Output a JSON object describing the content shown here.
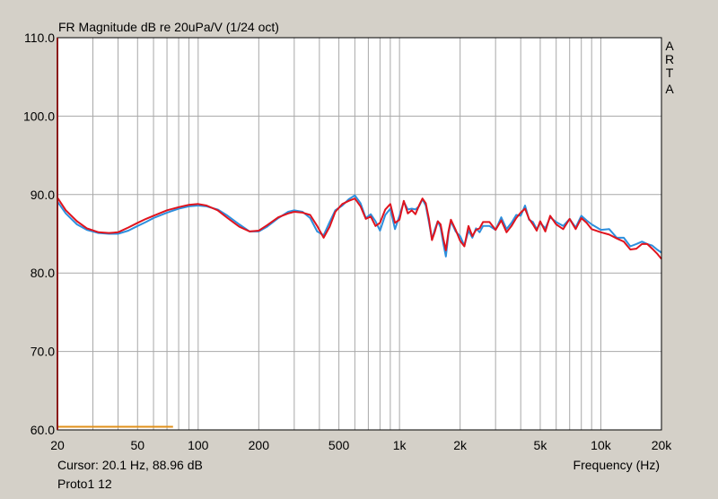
{
  "app_mark": [
    "A",
    "R",
    "T",
    "A"
  ],
  "footer": {
    "cursor": "Cursor: 20.1 Hz, 88.96 dB",
    "measurement_name": "Proto1 12"
  },
  "colors": {
    "background": "#d4d0c8",
    "plot_area": "#ffffff",
    "grid": "#a8a8a8",
    "left_axis": "#8b1a1a",
    "series_blue": "#2d8fdd",
    "series_red": "#e0141e",
    "marker_orange": "#e0901a"
  },
  "chart_data": {
    "type": "line",
    "title": "FR Magnitude dB re 20uPa/V (1/24 oct)",
    "xlabel": "Frequency (Hz)",
    "ylabel": "",
    "x_scale": "log",
    "xlim": [
      20,
      20000
    ],
    "ylim": [
      60,
      110
    ],
    "grid": true,
    "x_ticks": [
      20,
      50,
      100,
      200,
      500,
      1000,
      2000,
      5000,
      10000,
      20000
    ],
    "x_tick_labels": [
      "20",
      "50",
      "100",
      "200",
      "500",
      "1k",
      "2k",
      "5k",
      "10k",
      "20k"
    ],
    "y_ticks": [
      60,
      70,
      80,
      90,
      100,
      110
    ],
    "y_tick_labels": [
      "60.0",
      "70.0",
      "80.0",
      "90.0",
      "100.0",
      "110.0"
    ],
    "series": [
      {
        "color": "#2d8fdd",
        "points": [
          [
            20,
            89.1
          ],
          [
            22,
            87.6
          ],
          [
            25,
            86.2
          ],
          [
            28,
            85.5
          ],
          [
            32,
            85.1
          ],
          [
            36,
            85.0
          ],
          [
            40,
            85.0
          ],
          [
            45,
            85.4
          ],
          [
            50,
            86.0
          ],
          [
            55,
            86.5
          ],
          [
            60,
            87.0
          ],
          [
            70,
            87.7
          ],
          [
            80,
            88.2
          ],
          [
            90,
            88.5
          ],
          [
            100,
            88.6
          ],
          [
            110,
            88.5
          ],
          [
            125,
            88.1
          ],
          [
            140,
            87.3
          ],
          [
            160,
            86.2
          ],
          [
            180,
            85.3
          ],
          [
            200,
            85.3
          ],
          [
            220,
            85.9
          ],
          [
            250,
            87.0
          ],
          [
            280,
            87.8
          ],
          [
            300,
            88.0
          ],
          [
            330,
            87.8
          ],
          [
            360,
            87.0
          ],
          [
            390,
            85.3
          ],
          [
            420,
            84.8
          ],
          [
            450,
            86.5
          ],
          [
            480,
            88.0
          ],
          [
            520,
            88.6
          ],
          [
            560,
            89.4
          ],
          [
            600,
            89.9
          ],
          [
            640,
            88.9
          ],
          [
            680,
            87.0
          ],
          [
            720,
            87.5
          ],
          [
            760,
            86.6
          ],
          [
            800,
            85.4
          ],
          [
            850,
            87.4
          ],
          [
            900,
            88.2
          ],
          [
            950,
            85.6
          ],
          [
            1000,
            87.3
          ],
          [
            1050,
            89.1
          ],
          [
            1100,
            88.1
          ],
          [
            1150,
            88.2
          ],
          [
            1200,
            88.1
          ],
          [
            1250,
            88.5
          ],
          [
            1300,
            89.4
          ],
          [
            1350,
            88.6
          ],
          [
            1400,
            86.5
          ],
          [
            1450,
            84.3
          ],
          [
            1500,
            85.6
          ],
          [
            1550,
            86.6
          ],
          [
            1600,
            85.8
          ],
          [
            1650,
            83.8
          ],
          [
            1700,
            82.1
          ],
          [
            1750,
            85.0
          ],
          [
            1800,
            86.6
          ],
          [
            1900,
            85.3
          ],
          [
            2000,
            84.7
          ],
          [
            2100,
            83.5
          ],
          [
            2200,
            85.4
          ],
          [
            2300,
            84.5
          ],
          [
            2400,
            85.7
          ],
          [
            2500,
            85.2
          ],
          [
            2600,
            86.0
          ],
          [
            2800,
            86.0
          ],
          [
            3000,
            85.5
          ],
          [
            3200,
            87.1
          ],
          [
            3400,
            85.6
          ],
          [
            3600,
            86.4
          ],
          [
            3800,
            87.4
          ],
          [
            4000,
            87.3
          ],
          [
            4200,
            88.6
          ],
          [
            4400,
            86.8
          ],
          [
            4600,
            86.5
          ],
          [
            4800,
            85.6
          ],
          [
            5000,
            86.4
          ],
          [
            5300,
            85.7
          ],
          [
            5600,
            87.1
          ],
          [
            6000,
            86.5
          ],
          [
            6500,
            86.0
          ],
          [
            7000,
            86.9
          ],
          [
            7500,
            85.8
          ],
          [
            8000,
            87.3
          ],
          [
            8500,
            86.7
          ],
          [
            9000,
            86.2
          ],
          [
            10000,
            85.5
          ],
          [
            11000,
            85.6
          ],
          [
            12000,
            84.5
          ],
          [
            13000,
            84.5
          ],
          [
            14000,
            83.4
          ],
          [
            15000,
            83.7
          ],
          [
            16000,
            84.0
          ],
          [
            17000,
            83.7
          ],
          [
            18000,
            83.5
          ],
          [
            19000,
            83.0
          ],
          [
            20000,
            82.6
          ]
        ]
      },
      {
        "color": "#e0141e",
        "points": [
          [
            20,
            89.6
          ],
          [
            22,
            88.0
          ],
          [
            25,
            86.6
          ],
          [
            28,
            85.7
          ],
          [
            32,
            85.2
          ],
          [
            36,
            85.1
          ],
          [
            40,
            85.2
          ],
          [
            45,
            85.8
          ],
          [
            50,
            86.4
          ],
          [
            55,
            86.9
          ],
          [
            60,
            87.3
          ],
          [
            70,
            88.0
          ],
          [
            80,
            88.4
          ],
          [
            90,
            88.7
          ],
          [
            100,
            88.8
          ],
          [
            110,
            88.6
          ],
          [
            125,
            88.0
          ],
          [
            140,
            87.0
          ],
          [
            160,
            85.9
          ],
          [
            180,
            85.3
          ],
          [
            200,
            85.4
          ],
          [
            220,
            86.1
          ],
          [
            250,
            87.1
          ],
          [
            280,
            87.6
          ],
          [
            300,
            87.8
          ],
          [
            330,
            87.7
          ],
          [
            360,
            87.4
          ],
          [
            390,
            86.0
          ],
          [
            420,
            84.5
          ],
          [
            450,
            85.9
          ],
          [
            480,
            87.8
          ],
          [
            520,
            88.8
          ],
          [
            560,
            89.2
          ],
          [
            600,
            89.5
          ],
          [
            640,
            88.5
          ],
          [
            680,
            86.9
          ],
          [
            720,
            87.2
          ],
          [
            760,
            86.0
          ],
          [
            800,
            86.4
          ],
          [
            850,
            88.1
          ],
          [
            900,
            88.8
          ],
          [
            950,
            86.4
          ],
          [
            1000,
            86.8
          ],
          [
            1050,
            89.2
          ],
          [
            1100,
            87.6
          ],
          [
            1150,
            88.0
          ],
          [
            1200,
            87.5
          ],
          [
            1250,
            88.6
          ],
          [
            1300,
            89.5
          ],
          [
            1350,
            88.9
          ],
          [
            1400,
            86.9
          ],
          [
            1450,
            84.2
          ],
          [
            1500,
            85.3
          ],
          [
            1550,
            86.6
          ],
          [
            1600,
            86.2
          ],
          [
            1650,
            84.4
          ],
          [
            1700,
            82.9
          ],
          [
            1750,
            85.3
          ],
          [
            1800,
            86.8
          ],
          [
            1900,
            85.5
          ],
          [
            2000,
            84.1
          ],
          [
            2100,
            83.4
          ],
          [
            2200,
            86.0
          ],
          [
            2300,
            84.7
          ],
          [
            2400,
            85.5
          ],
          [
            2500,
            85.7
          ],
          [
            2600,
            86.5
          ],
          [
            2800,
            86.5
          ],
          [
            3000,
            85.5
          ],
          [
            3200,
            86.7
          ],
          [
            3400,
            85.2
          ],
          [
            3600,
            86.0
          ],
          [
            3800,
            87.0
          ],
          [
            4000,
            87.7
          ],
          [
            4200,
            88.2
          ],
          [
            4400,
            86.9
          ],
          [
            4600,
            86.2
          ],
          [
            4800,
            85.4
          ],
          [
            5000,
            86.6
          ],
          [
            5300,
            85.3
          ],
          [
            5600,
            87.3
          ],
          [
            6000,
            86.2
          ],
          [
            6500,
            85.6
          ],
          [
            7000,
            86.9
          ],
          [
            7500,
            85.6
          ],
          [
            8000,
            87.0
          ],
          [
            8500,
            86.4
          ],
          [
            9000,
            85.6
          ],
          [
            10000,
            85.2
          ],
          [
            11000,
            84.9
          ],
          [
            12000,
            84.4
          ],
          [
            13000,
            84.0
          ],
          [
            14000,
            83.0
          ],
          [
            15000,
            83.1
          ],
          [
            16000,
            83.7
          ],
          [
            17000,
            83.7
          ],
          [
            18000,
            83.1
          ],
          [
            19000,
            82.5
          ],
          [
            20000,
            81.8
          ]
        ]
      }
    ],
    "marker_line": {
      "color": "#e0901a",
      "y": 60.4,
      "x_from": 20,
      "x_to": 75
    }
  }
}
